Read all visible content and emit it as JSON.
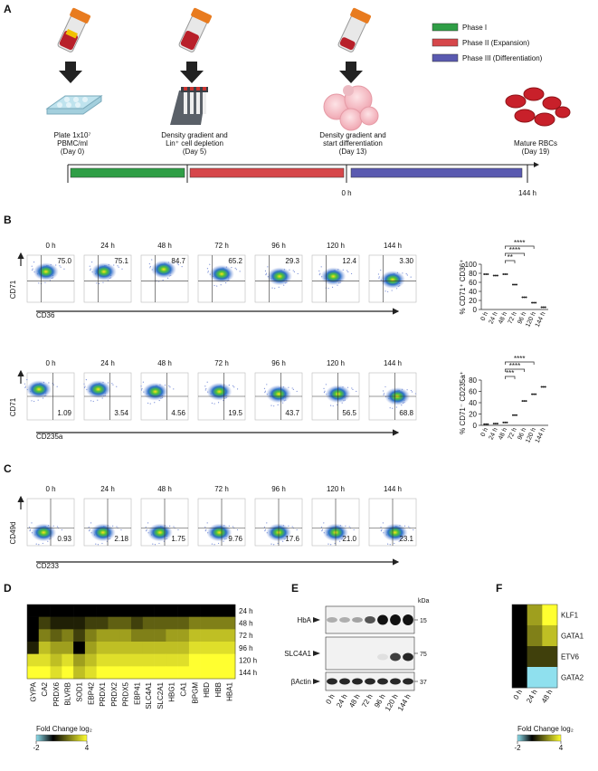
{
  "panel_a": {
    "letter": "A",
    "legend": [
      {
        "label": "Phase I",
        "color": "#2f9e46"
      },
      {
        "label": "Phase II (Expansion)",
        "color": "#d6474b"
      },
      {
        "label": "Phase III (Differentiation)",
        "color": "#5a5ab0"
      }
    ],
    "steps": [
      {
        "lines": [
          "Plate 1x10⁷",
          "PBMC/ml",
          "(Day 0)"
        ]
      },
      {
        "lines": [
          "Density gradient and",
          "Lin⁺ cell depletion",
          "(Day 5)"
        ]
      },
      {
        "lines": [
          "Density gradient and",
          "start differentiation",
          "(Day 13)"
        ]
      },
      {
        "lines": [
          "Mature RBCs",
          "(Day 19)"
        ]
      }
    ],
    "timeline": {
      "start": "0 h",
      "end": "144 h"
    }
  },
  "panel_b": {
    "letter": "B",
    "rows": [
      {
        "times": [
          "0 h",
          "24 h",
          "48 h",
          "72 h",
          "96 h",
          "120 h",
          "144 h"
        ],
        "quadrant_values": [
          "75.0",
          "75.1",
          "84.7",
          "65.2",
          "29.3",
          "12.4",
          "3.30"
        ],
        "value_corner": "top-right",
        "y_label": "CD71",
        "x_label": "CD36",
        "summary": {
          "y_label": "% CD71⁺ CD36⁺",
          "ylim": [
            0,
            100
          ],
          "yticks": [
            0,
            20,
            40,
            60,
            80,
            100
          ],
          "categories": [
            "0 h",
            "24 h",
            "48 h",
            "72 h",
            "96 h",
            "120 h",
            "144 h"
          ],
          "values": [
            78,
            75,
            78,
            55,
            27,
            15,
            5
          ],
          "significance": [
            "**",
            "****",
            "****"
          ]
        }
      },
      {
        "times": [
          "0 h",
          "24 h",
          "48 h",
          "72 h",
          "96 h",
          "120 h",
          "144 h"
        ],
        "quadrant_values": [
          "1.09",
          "3.54",
          "4.56",
          "19.5",
          "43.7",
          "56.5",
          "68.8"
        ],
        "value_corner": "bottom-right",
        "y_label": "CD71",
        "x_label": "CD235a",
        "summary": {
          "y_label": "% CD71⁻ CD235a⁺",
          "ylim": [
            0,
            80
          ],
          "yticks": [
            0,
            20,
            40,
            60,
            80
          ],
          "categories": [
            "0 h",
            "24 h",
            "48 h",
            "72 h",
            "96 h",
            "120 h",
            "144 h"
          ],
          "values": [
            2,
            3,
            5,
            18,
            43,
            55,
            68
          ],
          "significance": [
            "***",
            "****",
            "****"
          ]
        }
      }
    ]
  },
  "panel_c": {
    "letter": "C",
    "times": [
      "0 h",
      "24 h",
      "48 h",
      "72 h",
      "96 h",
      "120 h",
      "144 h"
    ],
    "quadrant_values": [
      "0.93",
      "2.18",
      "1.75",
      "9.76",
      "17.6",
      "21.0",
      "23.1"
    ],
    "value_corner": "bottom-right",
    "y_label": "CD49d",
    "x_label": "CD233"
  },
  "panel_d": {
    "letter": "D",
    "genes": [
      "GYPA",
      "CA2",
      "PRDX6",
      "BLVRB",
      "SOD1",
      "EBP42",
      "PRDX1",
      "PRDX2",
      "PRDX5",
      "EBP41",
      "SLC4A1",
      "SLC2A1",
      "HBG1",
      "CA1",
      "BPGM",
      "HBD",
      "HBB",
      "HBA1"
    ],
    "times": [
      "24 h",
      "48 h",
      "72 h",
      "96 h",
      "120 h",
      "144 h"
    ],
    "values": [
      [
        0,
        0,
        0,
        0,
        0,
        0,
        0,
        0,
        0,
        0,
        0,
        0,
        0,
        0,
        0,
        0,
        0,
        0
      ],
      [
        0,
        1,
        0.5,
        0.5,
        0.5,
        1,
        1,
        1.5,
        1.5,
        1,
        1.5,
        1.5,
        1.5,
        1.5,
        2,
        2,
        2,
        2
      ],
      [
        0,
        2,
        1.5,
        2,
        1,
        2,
        2.5,
        2.5,
        2.5,
        2,
        2,
        2,
        2.5,
        2.5,
        3,
        3,
        3,
        3
      ],
      [
        0.5,
        3,
        2.5,
        2.5,
        0,
        2.5,
        3,
        3,
        3,
        3,
        3,
        3,
        3,
        3,
        3.5,
        3.5,
        3.5,
        3.5
      ],
      [
        3.5,
        3.5,
        3,
        3.5,
        2.5,
        3,
        3.5,
        3.5,
        3.5,
        3.5,
        3.5,
        3.5,
        3.5,
        3.5,
        4,
        4,
        4,
        4
      ],
      [
        4,
        4,
        3.5,
        4,
        3,
        3.5,
        4,
        4,
        4,
        4,
        4,
        4,
        4,
        4,
        4,
        4,
        4,
        4
      ]
    ],
    "colorbar": {
      "label": "Fold Change log₂",
      "ticks": [
        -2,
        4
      ]
    }
  },
  "panel_e": {
    "letter": "E",
    "proteins": [
      "HbA",
      "SLC4A1",
      "βActin"
    ],
    "kda_label": "kDa",
    "markers": [
      "15",
      "75",
      "37"
    ],
    "lanes": [
      "0 h",
      "24 h",
      "48 h",
      "72 h",
      "96 h",
      "120 h",
      "144 h"
    ]
  },
  "panel_f": {
    "letter": "F",
    "genes": [
      "KLF1",
      "GATA1",
      "ETV6",
      "GATA2"
    ],
    "times": [
      "0 h",
      "24 h",
      "48 h"
    ],
    "values": [
      [
        0,
        2.5,
        4
      ],
      [
        0,
        2,
        3
      ],
      [
        0,
        1,
        1
      ],
      [
        0,
        -2,
        -2
      ]
    ],
    "colorbar": {
      "label": "Fold Change log₂",
      "ticks": [
        -2,
        4
      ]
    }
  },
  "colormap": [
    {
      "value": -2,
      "color": "#8fe0ee"
    },
    {
      "value": 0,
      "color": "#000000"
    },
    {
      "value": 4,
      "color": "#ffff30"
    }
  ]
}
